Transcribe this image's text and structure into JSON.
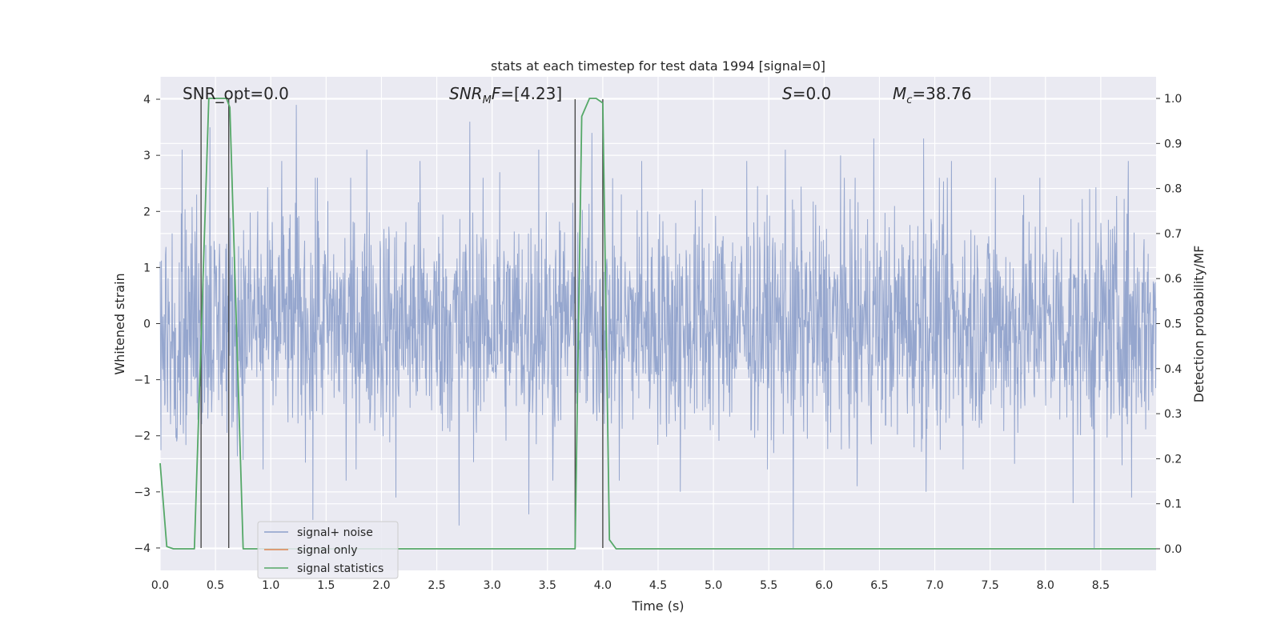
{
  "chart_data": {
    "type": "line",
    "title": "stats at each timestep for test data 1994 [signal=0]",
    "xlabel": "Time (s)",
    "ylabel_left": "Whitened strain",
    "ylabel_right": "Detection probability/MF",
    "xlim": [
      0.0,
      9.0
    ],
    "ylim_left": [
      -4.4,
      4.4
    ],
    "ylim_right": [
      -0.048,
      1.048
    ],
    "xticks": [
      "0.0",
      "0.5",
      "1.0",
      "1.5",
      "2.0",
      "2.5",
      "3.0",
      "3.5",
      "4.0",
      "4.5",
      "5.0",
      "5.5",
      "6.0",
      "6.5",
      "7.0",
      "7.5",
      "8.0",
      "8.5"
    ],
    "xtick_values": [
      0.0,
      0.5,
      1.0,
      1.5,
      2.0,
      2.5,
      3.0,
      3.5,
      4.0,
      4.5,
      5.0,
      5.5,
      6.0,
      6.5,
      7.0,
      7.5,
      8.0,
      8.5
    ],
    "yticks_left": [
      "−4",
      "−3",
      "−2",
      "−1",
      "0",
      "1",
      "2",
      "3",
      "4"
    ],
    "ytick_values_left": [
      -4,
      -3,
      -2,
      -1,
      0,
      1,
      2,
      3,
      4
    ],
    "yticks_right": [
      "0.0",
      "0.1",
      "0.2",
      "0.3",
      "0.4",
      "0.5",
      "0.6",
      "0.7",
      "0.8",
      "0.9",
      "1.0"
    ],
    "ytick_values_right": [
      0.0,
      0.1,
      0.2,
      0.3,
      0.4,
      0.5,
      0.6,
      0.7,
      0.8,
      0.9,
      1.0
    ],
    "grid": true,
    "legend_position": "lower-left",
    "series": [
      {
        "name": "signal+ noise",
        "axis": "left",
        "color": "#8c9fca",
        "style": "dense noise, roughly ±1.6 with spikes to about ±4",
        "spikes": [
          [
            0.2,
            3.1
          ],
          [
            0.33,
            2.3
          ],
          [
            0.45,
            3.5
          ],
          [
            0.62,
            2.9
          ],
          [
            0.88,
            2.0
          ],
          [
            1.1,
            2.9
          ],
          [
            1.23,
            3.9
          ],
          [
            1.42,
            2.6
          ],
          [
            1.87,
            3.1
          ],
          [
            2.35,
            2.9
          ],
          [
            2.8,
            3.6
          ],
          [
            3.07,
            2.7
          ],
          [
            3.42,
            3.1
          ],
          [
            3.75,
            3.6
          ],
          [
            3.9,
            3.4
          ],
          [
            4.35,
            2.9
          ],
          [
            4.9,
            2.4
          ],
          [
            5.3,
            2.9
          ],
          [
            5.65,
            3.1
          ],
          [
            6.15,
            3.0
          ],
          [
            6.45,
            3.3
          ],
          [
            6.9,
            3.3
          ],
          [
            7.15,
            2.9
          ],
          [
            7.55,
            2.6
          ],
          [
            7.95,
            2.6
          ],
          [
            8.4,
            2.4
          ],
          [
            8.75,
            2.9
          ],
          [
            0.15,
            -2.1
          ],
          [
            0.93,
            -2.6
          ],
          [
            1.38,
            -3.5
          ],
          [
            1.68,
            -2.8
          ],
          [
            2.13,
            -3.1
          ],
          [
            2.7,
            -3.6
          ],
          [
            3.33,
            -3.4
          ],
          [
            3.55,
            -2.8
          ],
          [
            4.15,
            -2.8
          ],
          [
            4.7,
            -3.0
          ],
          [
            5.72,
            -4.0
          ],
          [
            6.3,
            -2.9
          ],
          [
            6.92,
            -3.0
          ],
          [
            7.72,
            -2.5
          ],
          [
            8.25,
            -3.2
          ],
          [
            8.44,
            -4.0
          ],
          [
            8.78,
            -3.1
          ]
        ]
      },
      {
        "name": "signal only",
        "axis": "left",
        "color": "#dd8452",
        "values": []
      },
      {
        "name": "signal statistics",
        "axis": "right",
        "color": "#55a868",
        "x": [
          0.0,
          0.06,
          0.12,
          0.25,
          0.31,
          0.44,
          0.6,
          0.63,
          0.75,
          1.0,
          2.0,
          3.0,
          3.68,
          3.75,
          3.81,
          3.88,
          3.94,
          4.0,
          4.06,
          4.12,
          5.0,
          6.0,
          7.0,
          8.0,
          9.0
        ],
        "y": [
          0.19,
          0.005,
          0.0,
          0.0,
          0.0,
          1.0,
          1.0,
          0.98,
          0.0,
          0.0,
          0.0,
          0.0,
          0.0,
          0.0,
          0.96,
          1.0,
          1.0,
          0.99,
          0.02,
          0.0,
          0.0,
          0.0,
          0.0,
          0.0,
          0.0
        ]
      }
    ],
    "vertical_lines": [
      0.37,
      0.62,
      3.75,
      4.0
    ],
    "vertical_line_color": "#4a4a4a",
    "annotations": [
      {
        "text": "SNR_opt=0.0",
        "x": 0.2,
        "y": 4.05
      },
      {
        "text": "SNR_MF=[4.23]",
        "x": 2.6,
        "y": 4.05
      },
      {
        "text": "S=0.0",
        "x": 5.6,
        "y": 4.05
      },
      {
        "text": "M_c=38.76",
        "x": 6.6,
        "y": 4.05
      }
    ],
    "background_color": "#eaeaf2",
    "grid_color": "#ffffff"
  }
}
